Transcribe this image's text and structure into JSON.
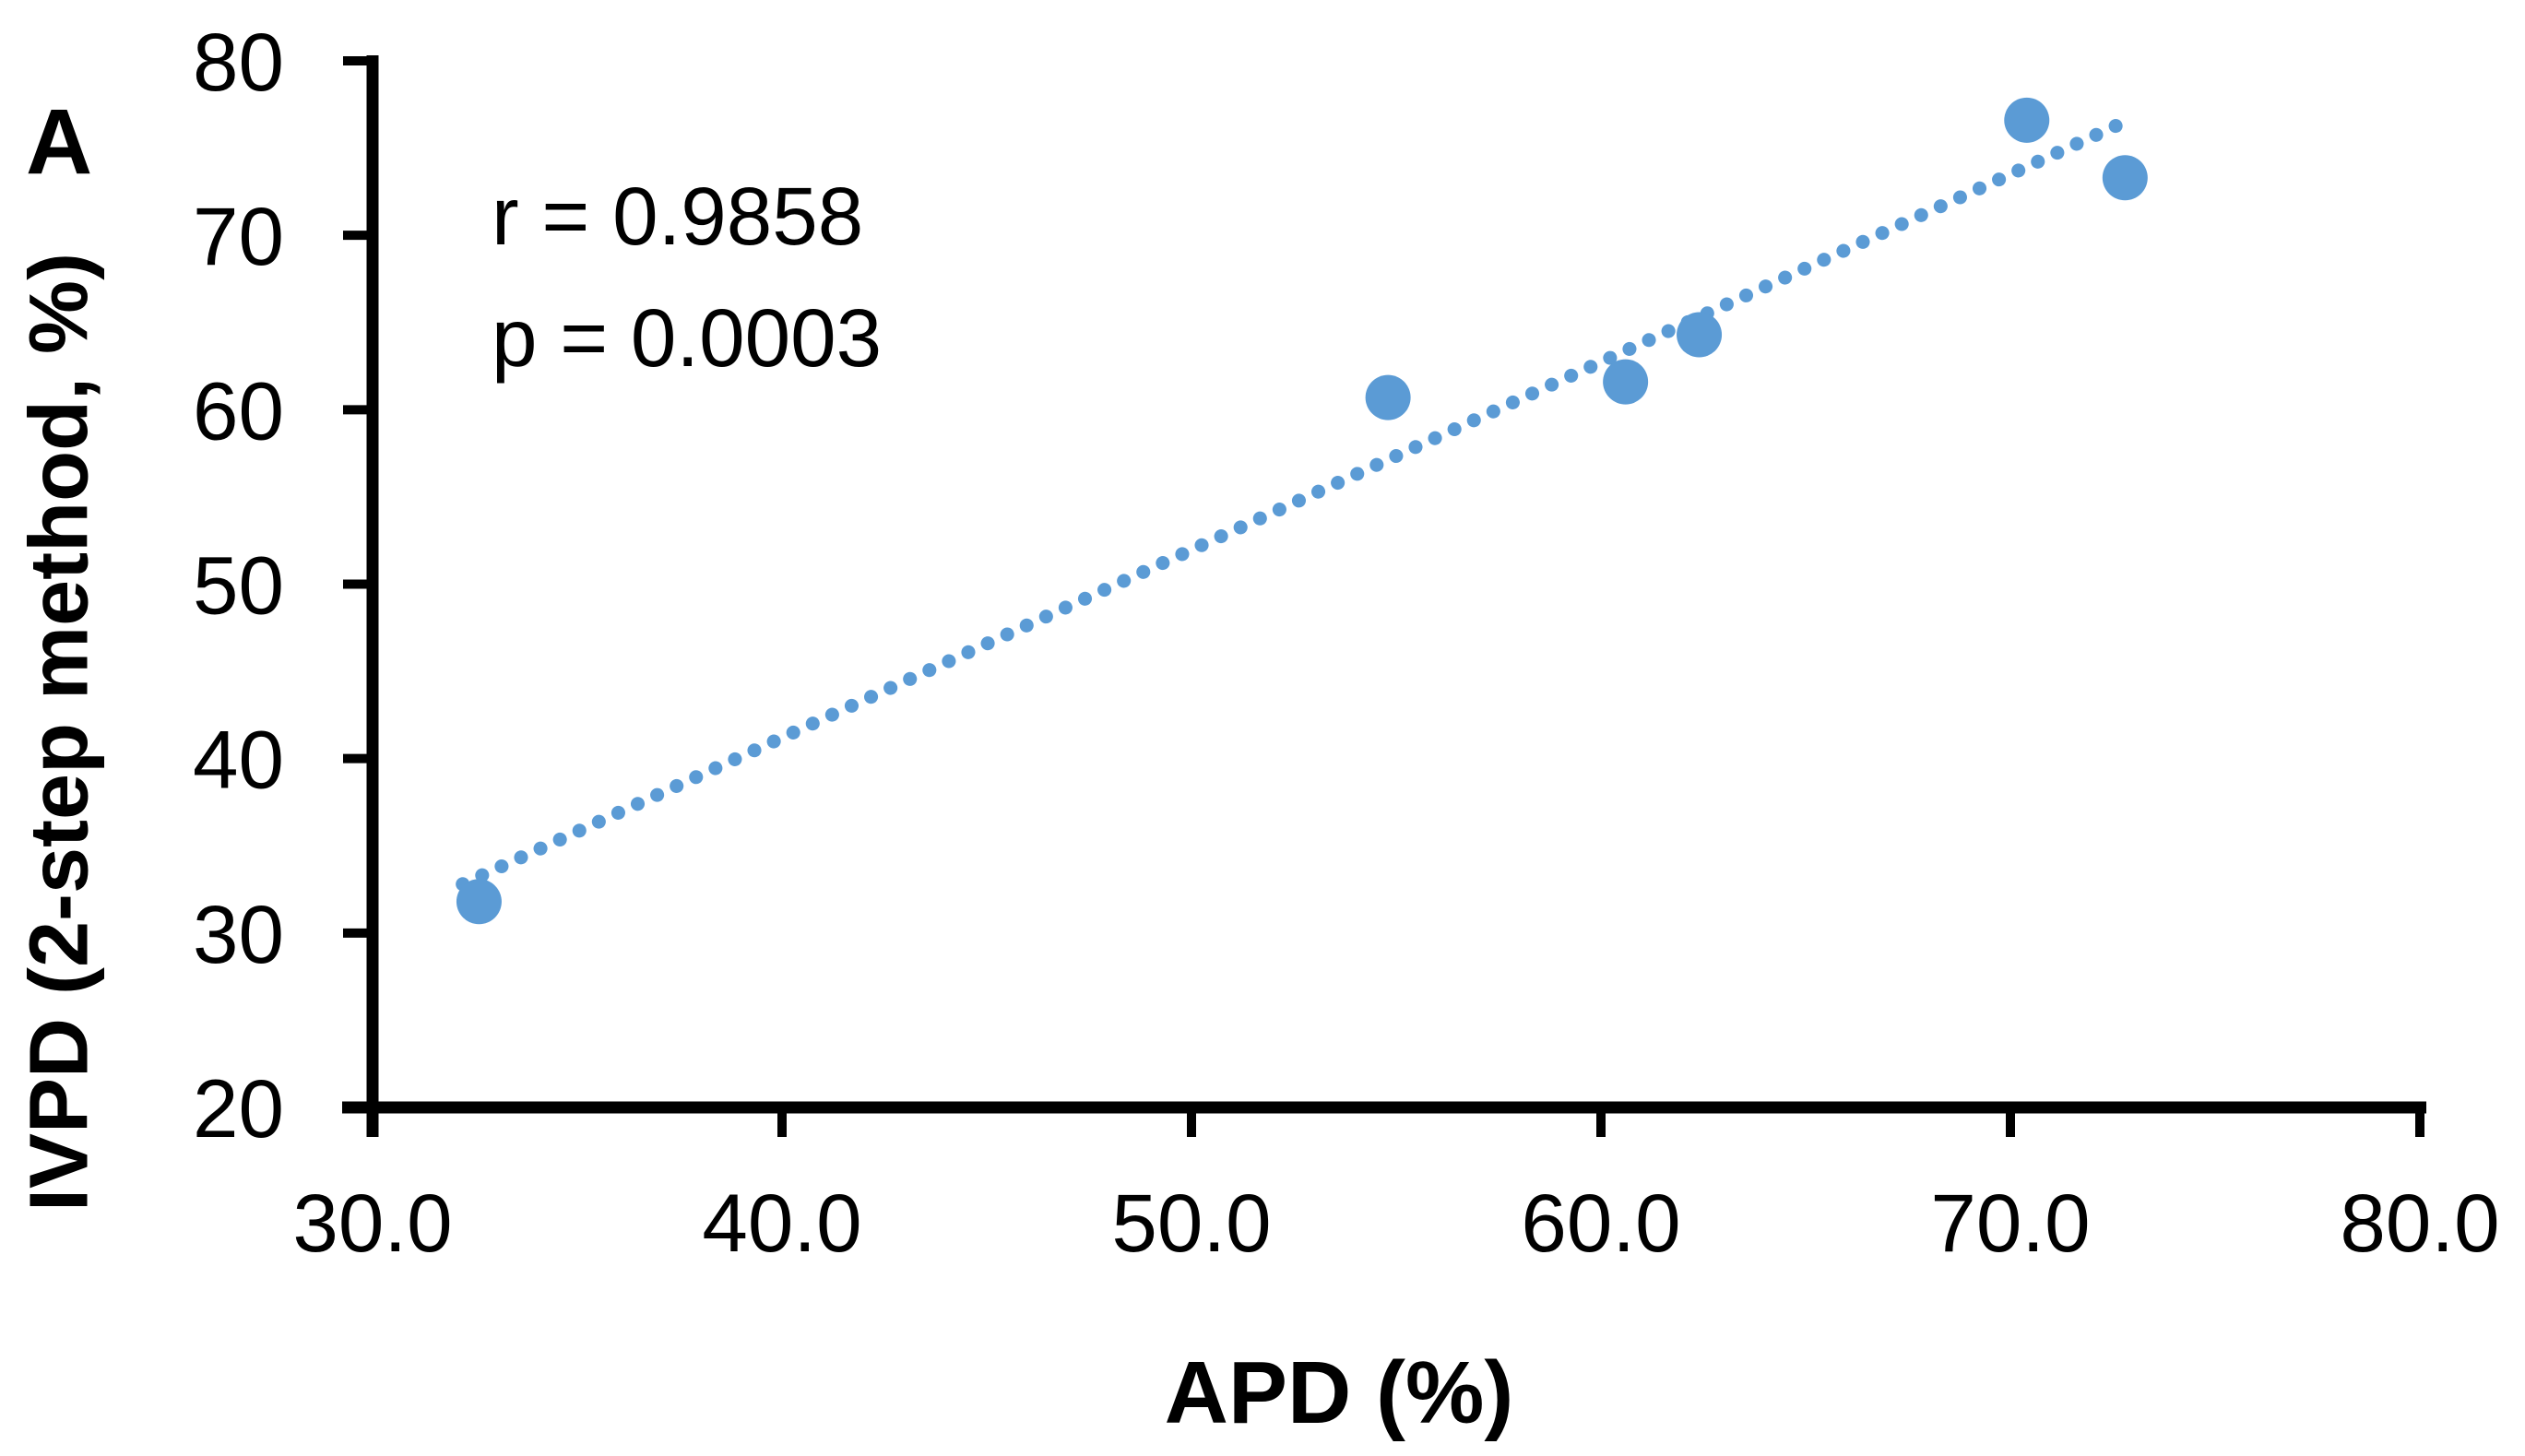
{
  "panel_label": "A",
  "annotation": {
    "r_text": "r = 0.9858",
    "p_text": "p = 0.0003"
  },
  "chart_data": {
    "type": "scatter",
    "title": "",
    "xlabel": "APD (%)",
    "ylabel": "IVPD (2-step method, %)",
    "xlim": [
      30,
      80
    ],
    "ylim": [
      20,
      80
    ],
    "x_ticks": [
      "30.0",
      "40.0",
      "50.0",
      "60.0",
      "70.0",
      "80.0"
    ],
    "y_ticks": [
      "20",
      "30",
      "40",
      "50",
      "60",
      "70",
      "80"
    ],
    "grid": "off",
    "legend": "none",
    "marker_color": "#5B9BD5",
    "axis_color": "#000000",
    "points": [
      {
        "x": 32.6,
        "y": 31.8
      },
      {
        "x": 54.8,
        "y": 60.7
      },
      {
        "x": 60.6,
        "y": 61.6
      },
      {
        "x": 62.4,
        "y": 64.3
      },
      {
        "x": 70.4,
        "y": 76.6
      },
      {
        "x": 72.8,
        "y": 73.3
      }
    ],
    "trendline": {
      "style": "dotted",
      "x1": 32.2,
      "y1": 32.8,
      "x2": 72.6,
      "y2": 76.3
    },
    "stats": {
      "r": 0.9858,
      "p": 0.0003
    }
  }
}
